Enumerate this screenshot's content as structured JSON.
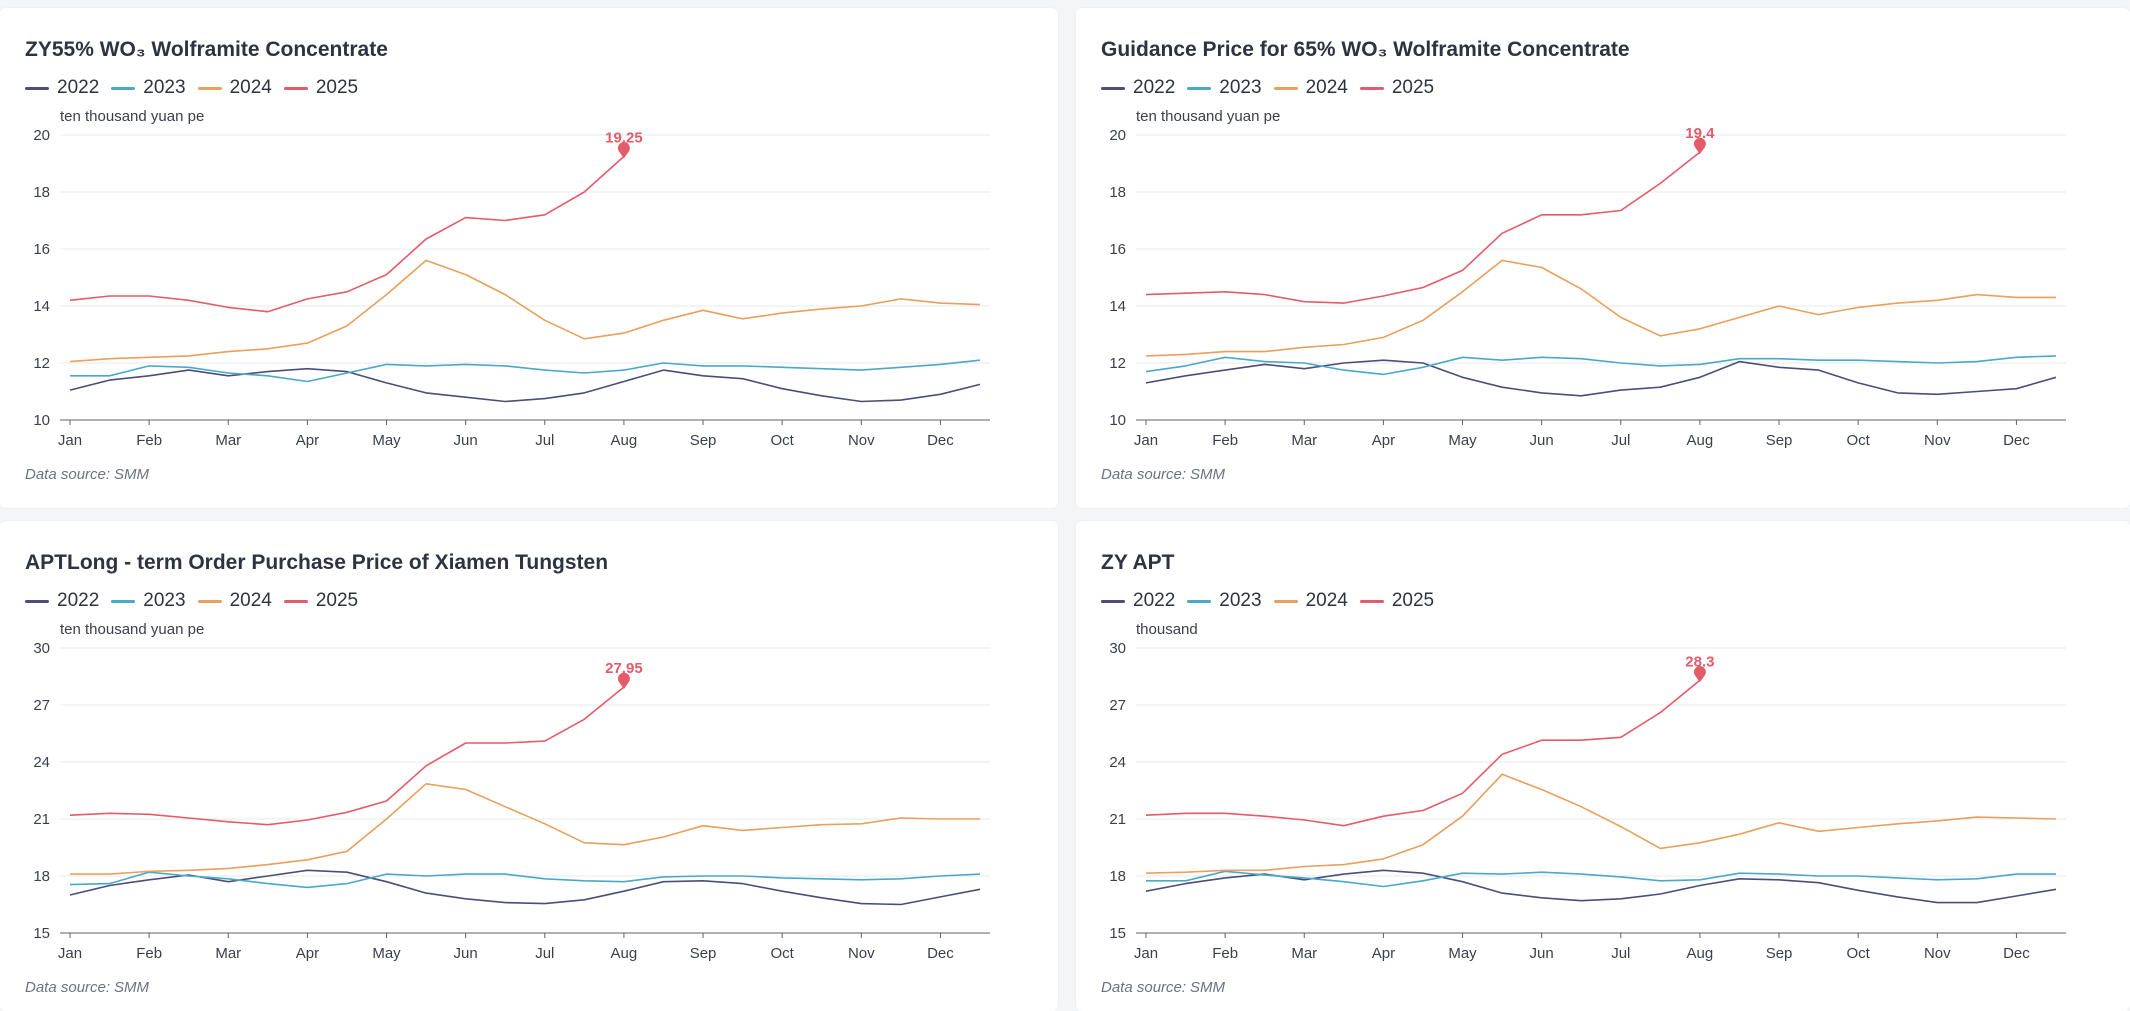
{
  "legend_series": [
    "2022",
    "2023",
    "2024",
    "2025"
  ],
  "colors": {
    "2022": "#4a4e7a",
    "2023": "#4aa8c8",
    "2024": "#e8a05c",
    "2025": "#e45b6a"
  },
  "months": [
    "Jan",
    "Feb",
    "Mar",
    "Apr",
    "May",
    "Jun",
    "Jul",
    "Aug",
    "Sep",
    "Oct",
    "Nov",
    "Dec"
  ],
  "source_label": "Data source:",
  "source_value": "SMM",
  "chart_data": [
    {
      "type": "line",
      "title": "ZY55% WO₃ Wolframite Concentrate",
      "ylabel": "ten thousand yuan pe",
      "ylim": [
        10,
        20
      ],
      "yticks": [
        10,
        12,
        14,
        16,
        18,
        20
      ],
      "x": [
        "Jan",
        "Jan",
        "Feb",
        "Feb",
        "Mar",
        "Mar",
        "Apr",
        "Apr",
        "May",
        "May",
        "Jun",
        "Jun",
        "Jul",
        "Jul",
        "Aug",
        "Aug",
        "Sep",
        "Sep",
        "Oct",
        "Oct",
        "Nov",
        "Nov",
        "Dec",
        "Dec"
      ],
      "series": [
        {
          "name": "2022",
          "values": [
            11.05,
            11.4,
            11.55,
            11.75,
            11.55,
            11.7,
            11.8,
            11.7,
            11.3,
            10.95,
            10.8,
            10.65,
            10.75,
            10.95,
            11.35,
            11.75,
            11.55,
            11.45,
            11.1,
            10.85,
            10.65,
            10.7,
            10.9,
            11.25
          ]
        },
        {
          "name": "2023",
          "values": [
            11.55,
            11.55,
            11.9,
            11.85,
            11.65,
            11.55,
            11.35,
            11.65,
            11.95,
            11.9,
            11.95,
            11.9,
            11.75,
            11.65,
            11.75,
            12.0,
            11.9,
            11.9,
            11.85,
            11.8,
            11.75,
            11.85,
            11.95,
            12.1
          ]
        },
        {
          "name": "2024",
          "values": [
            12.05,
            12.15,
            12.2,
            12.25,
            12.4,
            12.5,
            12.7,
            13.3,
            14.4,
            15.6,
            15.1,
            14.4,
            13.5,
            12.85,
            13.05,
            13.5,
            13.85,
            13.55,
            13.75,
            13.9,
            14.0,
            14.25,
            14.1,
            14.05
          ]
        },
        {
          "name": "2025",
          "values": [
            14.2,
            14.35,
            14.35,
            14.2,
            13.95,
            13.8,
            14.25,
            14.5,
            15.1,
            16.35,
            17.1,
            17.0,
            17.2,
            18.0,
            19.25,
            null,
            null,
            null,
            null,
            null,
            null,
            null,
            null,
            null
          ]
        }
      ],
      "annotation": {
        "series": "2025",
        "index": 14,
        "label": "19.25"
      }
    },
    {
      "type": "line",
      "title": "Guidance Price for 65% WO₃ Wolframite Concentrate",
      "ylabel": "ten thousand yuan pe",
      "ylim": [
        10,
        20
      ],
      "yticks": [
        10,
        12,
        14,
        16,
        18,
        20
      ],
      "x": [
        "Jan",
        "Jan",
        "Feb",
        "Feb",
        "Mar",
        "Mar",
        "Apr",
        "Apr",
        "May",
        "May",
        "Jun",
        "Jun",
        "Jul",
        "Jul",
        "Aug",
        "Aug",
        "Sep",
        "Sep",
        "Oct",
        "Oct",
        "Nov",
        "Nov",
        "Dec",
        "Dec"
      ],
      "series": [
        {
          "name": "2022",
          "values": [
            11.3,
            11.55,
            11.75,
            11.95,
            11.8,
            12.0,
            12.1,
            12.0,
            11.5,
            11.15,
            10.95,
            10.85,
            11.05,
            11.15,
            11.5,
            12.05,
            11.85,
            11.75,
            11.3,
            10.95,
            10.9,
            11.0,
            11.1,
            11.5
          ]
        },
        {
          "name": "2023",
          "values": [
            11.7,
            11.9,
            12.2,
            12.05,
            12.0,
            11.75,
            11.6,
            11.85,
            12.2,
            12.1,
            12.2,
            12.15,
            12.0,
            11.9,
            11.95,
            12.15,
            12.15,
            12.1,
            12.1,
            12.05,
            12.0,
            12.05,
            12.2,
            12.25
          ]
        },
        {
          "name": "2024",
          "values": [
            12.25,
            12.3,
            12.4,
            12.4,
            12.55,
            12.65,
            12.9,
            13.5,
            14.5,
            15.6,
            15.35,
            14.6,
            13.6,
            12.95,
            13.2,
            13.6,
            14.0,
            13.7,
            13.95,
            14.1,
            14.2,
            14.4,
            14.3,
            14.3
          ]
        },
        {
          "name": "2025",
          "values": [
            14.4,
            14.45,
            14.5,
            14.4,
            14.15,
            14.1,
            14.35,
            14.65,
            15.25,
            16.55,
            17.2,
            17.2,
            17.35,
            18.3,
            19.4,
            null,
            null,
            null,
            null,
            null,
            null,
            null,
            null,
            null
          ]
        }
      ],
      "annotation": {
        "series": "2025",
        "index": 14,
        "label": "19.4"
      }
    },
    {
      "type": "line",
      "title": "APTLong - term Order Purchase Price of Xiamen Tungsten",
      "ylabel": "ten thousand yuan pe",
      "ylim": [
        15,
        30
      ],
      "yticks": [
        15,
        18,
        21,
        24,
        27,
        30
      ],
      "x": [
        "Jan",
        "Jan",
        "Feb",
        "Feb",
        "Mar",
        "Mar",
        "Apr",
        "Apr",
        "May",
        "May",
        "Jun",
        "Jun",
        "Jul",
        "Jul",
        "Aug",
        "Aug",
        "Sep",
        "Sep",
        "Oct",
        "Oct",
        "Nov",
        "Nov",
        "Dec",
        "Dec"
      ],
      "series": [
        {
          "name": "2022",
          "values": [
            17.0,
            17.5,
            17.8,
            18.05,
            17.7,
            18.0,
            18.3,
            18.2,
            17.7,
            17.1,
            16.8,
            16.6,
            16.55,
            16.75,
            17.2,
            17.7,
            17.75,
            17.6,
            17.2,
            16.85,
            16.55,
            16.5,
            16.9,
            17.3
          ]
        },
        {
          "name": "2023",
          "values": [
            17.55,
            17.6,
            18.2,
            18.0,
            17.85,
            17.6,
            17.4,
            17.6,
            18.1,
            18.0,
            18.1,
            18.1,
            17.85,
            17.75,
            17.7,
            17.95,
            18.0,
            18.0,
            17.9,
            17.85,
            17.8,
            17.85,
            18.0,
            18.1
          ]
        },
        {
          "name": "2024",
          "values": [
            18.1,
            18.1,
            18.25,
            18.3,
            18.4,
            18.6,
            18.85,
            19.3,
            21.0,
            22.85,
            22.55,
            21.65,
            20.75,
            19.75,
            19.65,
            20.05,
            20.65,
            20.4,
            20.55,
            20.7,
            20.75,
            21.05,
            21.0,
            21.0
          ]
        },
        {
          "name": "2025",
          "values": [
            21.2,
            21.3,
            21.25,
            21.05,
            20.85,
            20.7,
            20.95,
            21.35,
            21.95,
            23.8,
            25.0,
            25.0,
            25.1,
            26.25,
            27.95,
            null,
            null,
            null,
            null,
            null,
            null,
            null,
            null,
            null
          ]
        }
      ],
      "annotation": {
        "series": "2025",
        "index": 14,
        "label": "27.95"
      }
    },
    {
      "type": "line",
      "title": "ZY APT",
      "ylabel": "thousand",
      "ylim": [
        15,
        30
      ],
      "yticks": [
        15,
        18,
        21,
        24,
        27,
        30
      ],
      "x": [
        "Jan",
        "Jan",
        "Feb",
        "Feb",
        "Mar",
        "Mar",
        "Apr",
        "Apr",
        "May",
        "May",
        "Jun",
        "Jun",
        "Jul",
        "Jul",
        "Aug",
        "Aug",
        "Sep",
        "Sep",
        "Oct",
        "Oct",
        "Nov",
        "Nov",
        "Dec",
        "Dec"
      ],
      "series": [
        {
          "name": "2022",
          "values": [
            17.2,
            17.6,
            17.9,
            18.1,
            17.8,
            18.1,
            18.3,
            18.15,
            17.7,
            17.1,
            16.85,
            16.7,
            16.8,
            17.05,
            17.5,
            17.85,
            17.8,
            17.65,
            17.25,
            16.9,
            16.6,
            16.6,
            16.95,
            17.3
          ]
        },
        {
          "name": "2023",
          "values": [
            17.75,
            17.75,
            18.25,
            18.05,
            17.9,
            17.7,
            17.45,
            17.75,
            18.15,
            18.1,
            18.2,
            18.1,
            17.95,
            17.75,
            17.8,
            18.15,
            18.1,
            18.0,
            18.0,
            17.9,
            17.8,
            17.85,
            18.1,
            18.1
          ]
        },
        {
          "name": "2024",
          "values": [
            18.15,
            18.2,
            18.3,
            18.3,
            18.5,
            18.6,
            18.9,
            19.65,
            21.15,
            23.35,
            22.55,
            21.65,
            20.6,
            19.45,
            19.75,
            20.2,
            20.8,
            20.35,
            20.55,
            20.75,
            20.9,
            21.1,
            21.05,
            21.0
          ]
        },
        {
          "name": "2025",
          "values": [
            21.2,
            21.3,
            21.3,
            21.15,
            20.95,
            20.65,
            21.15,
            21.45,
            22.35,
            24.4,
            25.15,
            25.15,
            25.3,
            26.6,
            28.3,
            null,
            null,
            null,
            null,
            null,
            null,
            null,
            null,
            null
          ]
        }
      ],
      "annotation": {
        "series": "2025",
        "index": 14,
        "label": "28.3"
      }
    }
  ]
}
